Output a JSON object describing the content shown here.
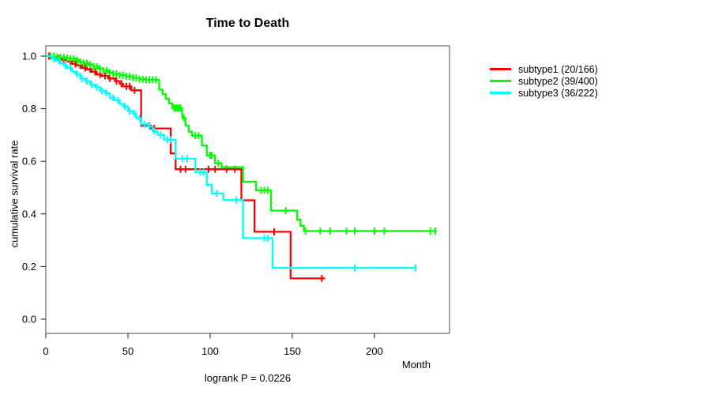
{
  "title": "Time to Death",
  "footnote": "logrank P = 0.0226",
  "chart_data": {
    "type": "line",
    "subtype": "kaplan-meier-survival-steps",
    "title": "Time to Death",
    "xlabel": "Month",
    "ylabel": "cumulative survival rate",
    "annotation": "logrank P = 0.0226",
    "xlim": [
      0,
      245
    ],
    "ylim": [
      0.0,
      1.0
    ],
    "x_ticks": [
      0,
      50,
      100,
      150,
      200
    ],
    "y_ticks": [
      0.0,
      0.2,
      0.4,
      0.6,
      0.8,
      1.0
    ],
    "grid": false,
    "legend_position": "right-outside",
    "series": [
      {
        "name": "subtype1",
        "label": "subtype1 (20/166)",
        "events": 20,
        "n": 166,
        "color": "#ff0000",
        "steps": [
          [
            0,
            1.0
          ],
          [
            3,
            0.995
          ],
          [
            7,
            0.99
          ],
          [
            10,
            0.985
          ],
          [
            13,
            0.98
          ],
          [
            16,
            0.97
          ],
          [
            19,
            0.965
          ],
          [
            22,
            0.955
          ],
          [
            25,
            0.95
          ],
          [
            28,
            0.94
          ],
          [
            31,
            0.93
          ],
          [
            34,
            0.925
          ],
          [
            38,
            0.915
          ],
          [
            42,
            0.905
          ],
          [
            45,
            0.895
          ],
          [
            47,
            0.885
          ],
          [
            52,
            0.87
          ],
          [
            58,
            0.735
          ],
          [
            64,
            0.725
          ],
          [
            76,
            0.63
          ],
          [
            79,
            0.57
          ],
          [
            119,
            0.452
          ],
          [
            127,
            0.332
          ],
          [
            149,
            0.155
          ]
        ],
        "end_month": 170,
        "censor_months": [
          2,
          5,
          8,
          11,
          15,
          18,
          21,
          24,
          27,
          30,
          33,
          36,
          39,
          43,
          46,
          49,
          51,
          54,
          63,
          66,
          82,
          85,
          99,
          103,
          110,
          115,
          139,
          168
        ]
      },
      {
        "name": "subtype2",
        "label": "subtype2 (39/400)",
        "events": 39,
        "n": 400,
        "color": "#00ff00",
        "steps": [
          [
            0,
            1.0
          ],
          [
            6,
            0.9975
          ],
          [
            9,
            0.995
          ],
          [
            12,
            0.9925
          ],
          [
            15,
            0.99
          ],
          [
            18,
            0.985
          ],
          [
            20,
            0.9775
          ],
          [
            23,
            0.9725
          ],
          [
            26,
            0.9675
          ],
          [
            29,
            0.96
          ],
          [
            32,
            0.9525
          ],
          [
            35,
            0.945
          ],
          [
            38,
            0.9375
          ],
          [
            41,
            0.9325
          ],
          [
            45,
            0.9275
          ],
          [
            49,
            0.9225
          ],
          [
            53,
            0.9175
          ],
          [
            57,
            0.9125
          ],
          [
            60,
            0.91
          ],
          [
            69,
            0.8725
          ],
          [
            71,
            0.855
          ],
          [
            73,
            0.8375
          ],
          [
            75,
            0.82
          ],
          [
            77,
            0.8025
          ],
          [
            83,
            0.765
          ],
          [
            85,
            0.735
          ],
          [
            87,
            0.7125
          ],
          [
            89,
            0.6975
          ],
          [
            95,
            0.66
          ],
          [
            98,
            0.6225
          ],
          [
            103,
            0.5925
          ],
          [
            107,
            0.5775
          ],
          [
            120,
            0.5225
          ],
          [
            128,
            0.49
          ],
          [
            137,
            0.4125
          ],
          [
            153,
            0.3775
          ],
          [
            155,
            0.355
          ],
          [
            157,
            0.335
          ]
        ],
        "end_month": 238,
        "censor_months": [
          3,
          5,
          7,
          9,
          11,
          13,
          15,
          17,
          19,
          21,
          23,
          25,
          27,
          29,
          31,
          33,
          35,
          37,
          39,
          41,
          43,
          45,
          47,
          49,
          51,
          53,
          55,
          57,
          59,
          61,
          63,
          65,
          67,
          78,
          79,
          80,
          81,
          82,
          84,
          91,
          93,
          100,
          101,
          105,
          131,
          133,
          135,
          146,
          158,
          167,
          173,
          183,
          188,
          200,
          206,
          234,
          237
        ]
      },
      {
        "name": "subtype3",
        "label": "subtype3 (36/222)",
        "events": 36,
        "n": 222,
        "color": "#00ffff",
        "steps": [
          [
            0,
            1.0
          ],
          [
            4,
            0.99
          ],
          [
            6,
            0.982
          ],
          [
            9,
            0.973
          ],
          [
            11,
            0.964
          ],
          [
            13,
            0.955
          ],
          [
            16,
            0.941
          ],
          [
            18,
            0.932
          ],
          [
            21,
            0.914
          ],
          [
            24,
            0.905
          ],
          [
            27,
            0.891
          ],
          [
            30,
            0.882
          ],
          [
            33,
            0.868
          ],
          [
            36,
            0.859
          ],
          [
            39,
            0.841
          ],
          [
            42,
            0.832
          ],
          [
            45,
            0.818
          ],
          [
            47,
            0.809
          ],
          [
            50,
            0.791
          ],
          [
            53,
            0.782
          ],
          [
            55,
            0.764
          ],
          [
            58,
            0.741
          ],
          [
            62,
            0.732
          ],
          [
            65,
            0.714
          ],
          [
            68,
            0.7
          ],
          [
            72,
            0.682
          ],
          [
            79,
            0.61
          ],
          [
            91,
            0.559
          ],
          [
            98,
            0.511
          ],
          [
            101,
            0.478
          ],
          [
            108,
            0.453
          ],
          [
            120,
            0.308
          ],
          [
            138,
            0.195
          ]
        ],
        "end_month": 225,
        "censor_months": [
          5,
          8,
          12,
          15,
          19,
          22,
          25,
          28,
          31,
          34,
          37,
          41,
          44,
          48,
          51,
          54,
          57,
          60,
          63,
          66,
          70,
          74,
          76,
          83,
          86,
          94,
          96,
          104,
          116,
          133,
          135,
          188,
          225
        ]
      }
    ]
  }
}
